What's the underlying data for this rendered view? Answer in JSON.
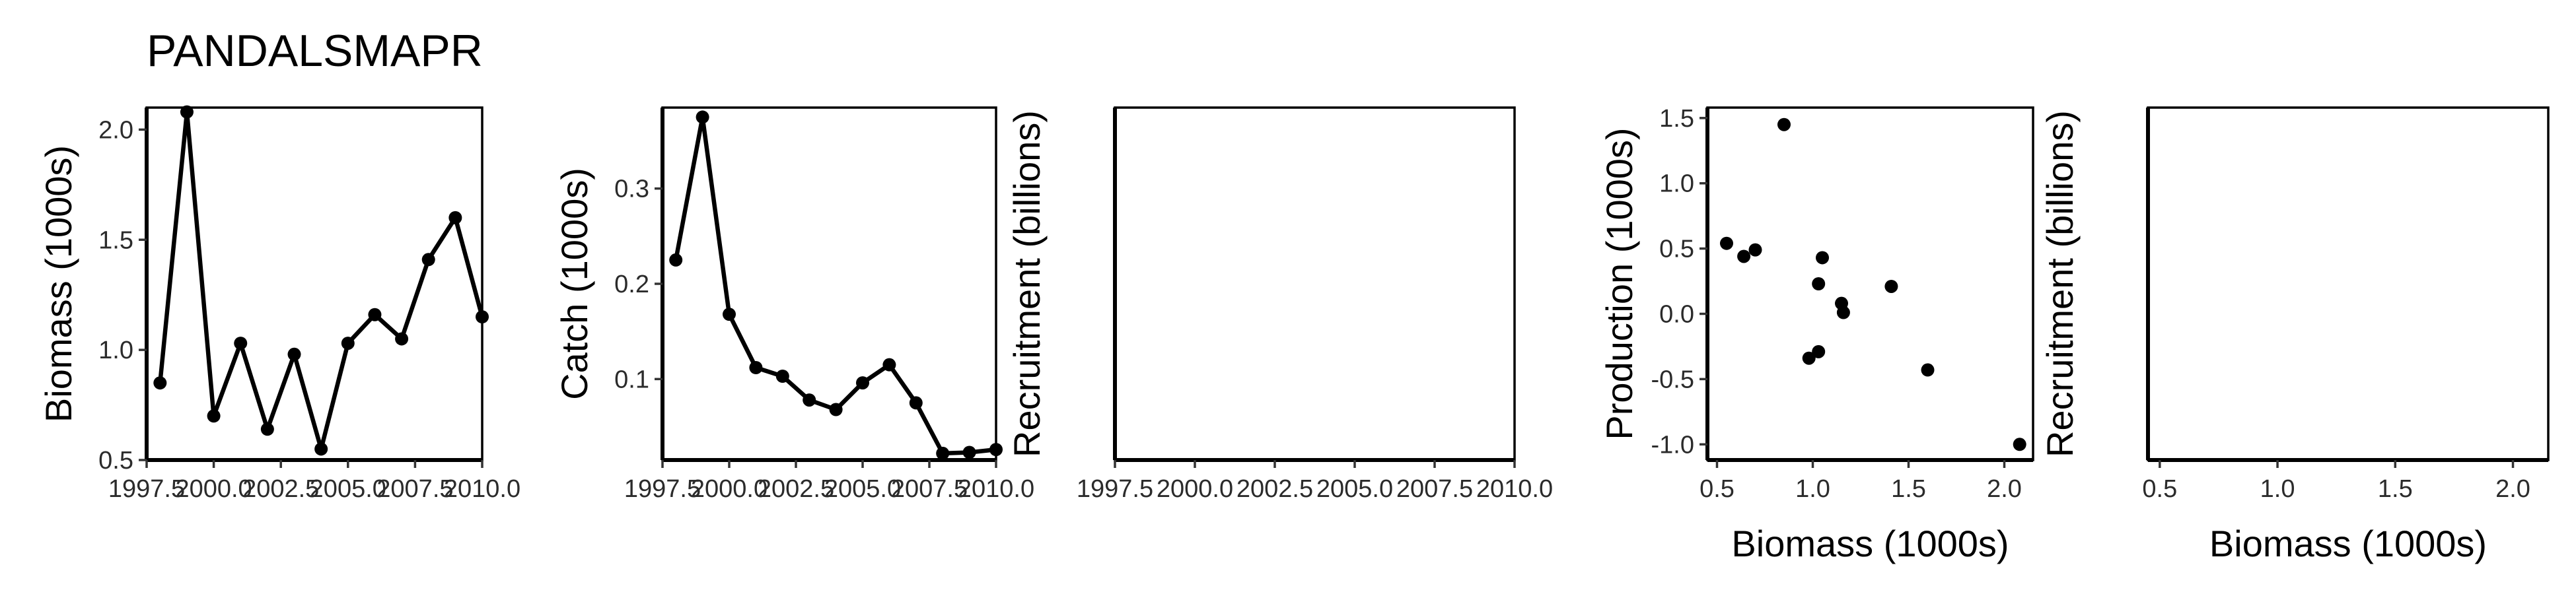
{
  "title": "PANDALSMAPR",
  "colors": {
    "ink": "#000000",
    "tick": "#333333",
    "background": "#ffffff"
  },
  "chart_data": [
    {
      "type": "line",
      "xlabel": "",
      "ylabel": "Biomass (1000s)",
      "xlim": [
        1997.5,
        2010.0
      ],
      "ylim": [
        0.5,
        2.1
      ],
      "xticks": [
        1997.5,
        2000.0,
        2002.5,
        2005.0,
        2007.5,
        2010.0
      ],
      "xtick_labels": [
        "1997.5",
        "2000.0",
        "2002.5",
        "2005.0",
        "2007.5",
        "2010.0"
      ],
      "yticks": [
        0.5,
        1.0,
        1.5,
        2.0
      ],
      "ytick_labels": [
        "0.5",
        "1.0",
        "1.5",
        "2.0"
      ],
      "x": [
        1998,
        1999,
        2000,
        2001,
        2002,
        2003,
        2004,
        2005,
        2006,
        2007,
        2008,
        2009,
        2010
      ],
      "y": [
        0.85,
        2.08,
        0.7,
        1.03,
        0.64,
        0.98,
        0.55,
        1.03,
        1.16,
        1.05,
        1.41,
        1.6,
        1.15
      ]
    },
    {
      "type": "line",
      "xlabel": "",
      "ylabel": "Catch (1000s)",
      "xlim": [
        1997.5,
        2010.0
      ],
      "ylim": [
        0.015,
        0.385
      ],
      "xticks": [
        1997.5,
        2000.0,
        2002.5,
        2005.0,
        2007.5,
        2010.0
      ],
      "xtick_labels": [
        "1997.5",
        "2000.0",
        "2002.5",
        "2005.0",
        "2007.5",
        "2010.0"
      ],
      "yticks": [
        0.1,
        0.2,
        0.3
      ],
      "ytick_labels": [
        "0.1",
        "0.2",
        "0.3"
      ],
      "x": [
        1998,
        1999,
        2000,
        2001,
        2002,
        2003,
        2004,
        2005,
        2006,
        2007,
        2008,
        2009,
        2010
      ],
      "y": [
        0.225,
        0.375,
        0.168,
        0.112,
        0.103,
        0.078,
        0.068,
        0.096,
        0.115,
        0.075,
        0.022,
        0.023,
        0.026
      ]
    },
    {
      "type": "line",
      "xlabel": "",
      "ylabel": "Recruitment (billions)",
      "xlim": [
        1997.5,
        2010.0
      ],
      "ylim": [
        0,
        1
      ],
      "xticks": [
        1997.5,
        2000.0,
        2002.5,
        2005.0,
        2007.5,
        2010.0
      ],
      "xtick_labels": [
        "1997.5",
        "2000.0",
        "2002.5",
        "2005.0",
        "2007.5",
        "2010.0"
      ],
      "yticks": [],
      "ytick_labels": [],
      "x": [],
      "y": []
    },
    {
      "type": "scatter",
      "xlabel": "Biomass (1000s)",
      "ylabel": "Production (1000s)",
      "xlim": [
        0.45,
        2.15
      ],
      "ylim": [
        -1.12,
        1.58
      ],
      "xticks": [
        0.5,
        1.0,
        1.5,
        2.0
      ],
      "xtick_labels": [
        "0.5",
        "1.0",
        "1.5",
        "2.0"
      ],
      "yticks": [
        -1.0,
        -0.5,
        0.0,
        0.5,
        1.0,
        1.5
      ],
      "ytick_labels": [
        "-1.0",
        "-0.5",
        "0.0",
        "0.5",
        "1.0",
        "1.5"
      ],
      "x": [
        0.55,
        0.64,
        0.7,
        0.85,
        0.98,
        1.03,
        1.03,
        1.05,
        1.15,
        1.16,
        1.41,
        1.6,
        2.08
      ],
      "y": [
        0.54,
        0.44,
        0.49,
        1.45,
        -0.34,
        -0.29,
        0.23,
        0.43,
        0.08,
        0.01,
        0.21,
        -0.43,
        -1.0
      ]
    },
    {
      "type": "scatter",
      "xlabel": "Biomass (1000s)",
      "ylabel": "Recruitment (billions)",
      "xlim": [
        0.45,
        2.15
      ],
      "ylim": [
        0,
        1
      ],
      "xticks": [
        0.5,
        1.0,
        1.5,
        2.0
      ],
      "xtick_labels": [
        "0.5",
        "1.0",
        "1.5",
        "2.0"
      ],
      "yticks": [],
      "ytick_labels": [],
      "x": [],
      "y": []
    }
  ]
}
